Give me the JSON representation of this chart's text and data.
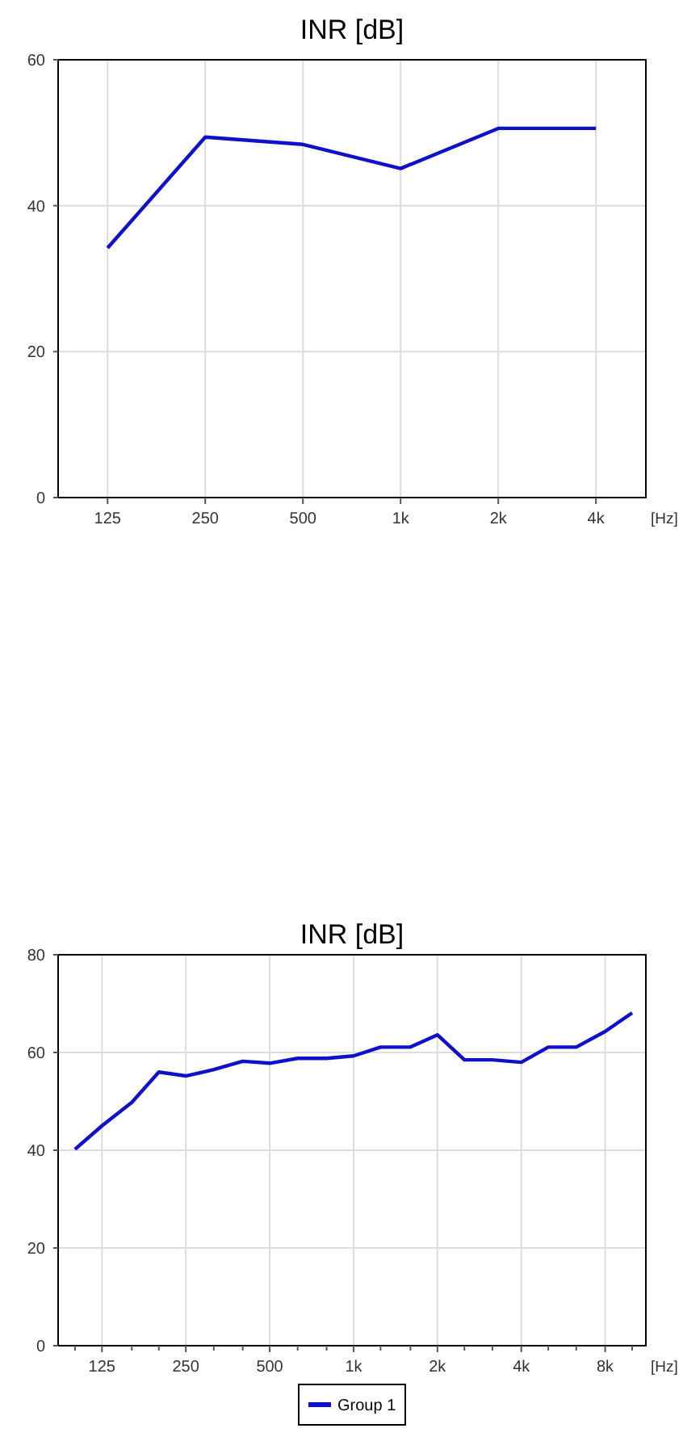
{
  "chart_data": [
    {
      "type": "line",
      "title": "INR [dB]",
      "xlabel": "[Hz]",
      "log": "x",
      "grid": true,
      "legend": false,
      "xlim": [
        88,
        5700
      ],
      "ylim": [
        0,
        60
      ],
      "yticks": [
        0,
        20,
        40,
        60
      ],
      "xticks": [
        125,
        250,
        500,
        {
          "value": 1000,
          "label": "1k"
        },
        {
          "value": 2000,
          "label": "2k"
        },
        {
          "value": 4000,
          "label": "4k"
        }
      ],
      "x": [
        125,
        250,
        500,
        1000,
        2000,
        4000
      ],
      "series": [
        {
          "color": "#1010c8",
          "values": [
            34.2,
            49.4,
            48.4,
            45.1,
            50.6,
            50.6
          ]
        }
      ]
    },
    {
      "type": "line",
      "title": "INR [dB]",
      "xlabel": "[Hz]",
      "log": "x",
      "grid": true,
      "legend": "bottom",
      "xlim": [
        87,
        11200
      ],
      "ylim": [
        0,
        80
      ],
      "yticks": [
        0,
        20,
        40,
        60,
        80
      ],
      "xticks": [
        {
          "value": 100,
          "label": null
        },
        125,
        {
          "value": 160,
          "label": null
        },
        {
          "value": 200,
          "label": null
        },
        250,
        {
          "value": 315,
          "label": null
        },
        {
          "value": 400,
          "label": null
        },
        500,
        {
          "value": 630,
          "label": null
        },
        {
          "value": 800,
          "label": null
        },
        {
          "value": 1000,
          "label": "1k"
        },
        {
          "value": 1250,
          "label": null
        },
        {
          "value": 1600,
          "label": null
        },
        {
          "value": 2000,
          "label": "2k"
        },
        {
          "value": 2500,
          "label": null
        },
        {
          "value": 3150,
          "label": null
        },
        {
          "value": 4000,
          "label": "4k"
        },
        {
          "value": 5000,
          "label": null
        },
        {
          "value": 6300,
          "label": null
        },
        {
          "value": 8000,
          "label": "8k"
        },
        {
          "value": 10000,
          "label": null
        }
      ],
      "x": [
        100,
        125,
        160,
        200,
        250,
        315,
        400,
        500,
        630,
        800,
        1000,
        1250,
        1600,
        2000,
        2500,
        3150,
        4000,
        5000,
        6300,
        8000,
        10000
      ],
      "series": [
        {
          "name": "Group 1",
          "color": "#1010c8",
          "values": [
            40.2,
            45,
            49.8,
            56,
            55.2,
            56.5,
            58.2,
            57.8,
            58.8,
            58.8,
            59.3,
            61.1,
            61.1,
            63.6,
            58.5,
            58.5,
            58,
            61.1,
            61.1,
            64.3,
            68.1
          ]
        }
      ]
    }
  ]
}
